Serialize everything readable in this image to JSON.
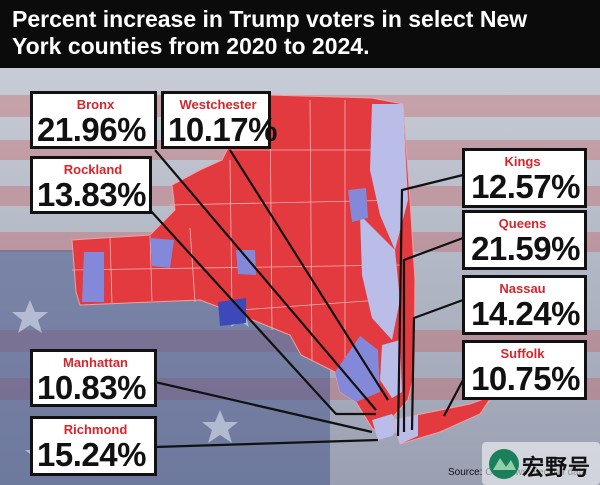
{
  "title": "Percent increase in Trump voters in select New York counties from 2020 to 2024.",
  "colors": {
    "red_counties": "#e23a3f",
    "light_counties": "#b9bde8",
    "mid_counties": "#8488d8",
    "dark_county": "#3d49b8",
    "label_name": "#d6252b"
  },
  "counties": [
    {
      "name": "Bronx",
      "value": "21.96%"
    },
    {
      "name": "Westchester",
      "value": "10.17%"
    },
    {
      "name": "Rockland",
      "value": "13.83%"
    },
    {
      "name": "Manhattan",
      "value": "10.83%"
    },
    {
      "name": "Richmond",
      "value": "15.24%"
    },
    {
      "name": "Kings",
      "value": "12.57%"
    },
    {
      "name": "Queens",
      "value": "21.59%"
    },
    {
      "name": "Nassau",
      "value": "14.24%"
    },
    {
      "name": "Suffolk",
      "value": "10.75%"
    }
  ],
  "source": "Source: C… …ws election data",
  "watermark": "宏野号"
}
